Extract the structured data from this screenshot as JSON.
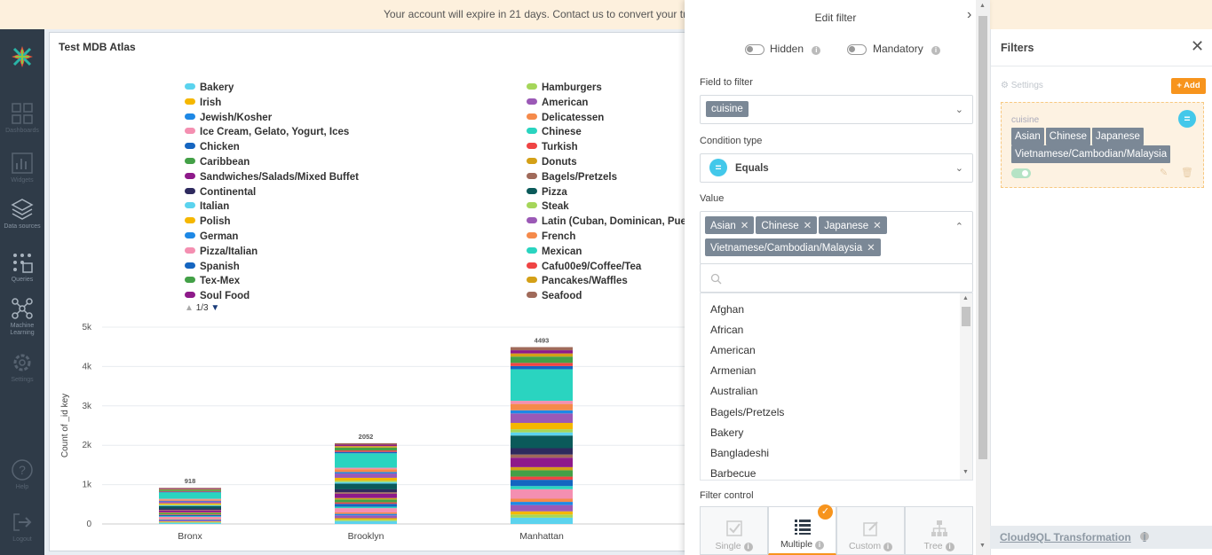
{
  "banner": {
    "text": "Your account will expire in 21 days. Contact us to convert your tri"
  },
  "nav": {
    "items": [
      {
        "label": "Dashboards",
        "icon": "dashboards-icon"
      },
      {
        "label": "Widgets",
        "icon": "widgets-icon"
      },
      {
        "label": "Data sources",
        "icon": "data-sources-icon"
      },
      {
        "label": "Queries",
        "icon": "queries-icon"
      },
      {
        "label": "Machine Learning",
        "icon": "machine-learning-icon"
      },
      {
        "label": "Settings",
        "icon": "settings-icon"
      },
      {
        "label": "Help",
        "icon": "help-icon"
      },
      {
        "label": "Logout",
        "icon": "logout-icon"
      }
    ]
  },
  "widget": {
    "title": "Test MDB Atlas"
  },
  "legend": {
    "col1": [
      {
        "label": "Bakery",
        "color": "#5bd3ee"
      },
      {
        "label": "Irish",
        "color": "#f5b700"
      },
      {
        "label": "Jewish/Kosher",
        "color": "#1e88e5"
      },
      {
        "label": "Ice Cream, Gelato, Yogurt, Ices",
        "color": "#f48fb1"
      },
      {
        "label": "Chicken",
        "color": "#1565c0"
      },
      {
        "label": "Caribbean",
        "color": "#43a047"
      },
      {
        "label": "Sandwiches/Salads/Mixed Buffet",
        "color": "#8e1a8a"
      },
      {
        "label": "Continental",
        "color": "#2e2a5e"
      },
      {
        "label": "Italian",
        "color": "#5bd3ee"
      },
      {
        "label": "Polish",
        "color": "#f5b700"
      },
      {
        "label": "German",
        "color": "#1e88e5"
      },
      {
        "label": "Pizza/Italian",
        "color": "#f48fb1"
      },
      {
        "label": "Spanish",
        "color": "#1565c0"
      },
      {
        "label": "Tex-Mex",
        "color": "#43a047"
      },
      {
        "label": "Soul Food",
        "color": "#8e1a8a"
      }
    ],
    "col2": [
      {
        "label": "Hamburgers",
        "color": "#a5d65a"
      },
      {
        "label": "American",
        "color": "#9b59b6"
      },
      {
        "label": "Delicatessen",
        "color": "#f58a4b"
      },
      {
        "label": "Chinese",
        "color": "#2ad4c0"
      },
      {
        "label": "Turkish",
        "color": "#ef4444"
      },
      {
        "label": "Donuts",
        "color": "#d4a017"
      },
      {
        "label": "Bagels/Pretzels",
        "color": "#a06a5a"
      },
      {
        "label": "Pizza",
        "color": "#0b5a5a"
      },
      {
        "label": "Steak",
        "color": "#a5d65a"
      },
      {
        "label": "Latin (Cuban, Dominican, Puer",
        "color": "#9b59b6"
      },
      {
        "label": "French",
        "color": "#f58a4b"
      },
      {
        "label": "Mexican",
        "color": "#2ad4c0"
      },
      {
        "label": "Cafu00e9/Coffee/Tea",
        "color": "#ef4444"
      },
      {
        "label": "Pancakes/Waffles",
        "color": "#d4a017"
      },
      {
        "label": "Seafood",
        "color": "#a06a5a"
      }
    ],
    "pager": "1/3"
  },
  "chart_data": {
    "type": "bar",
    "stacked": true,
    "categories": [
      "Bronx",
      "Brooklyn",
      "Manhattan"
    ],
    "values": [
      918,
      2052,
      4493
    ],
    "ylabel": "Count of _id key",
    "ylim": [
      0,
      5000
    ],
    "yticks": [
      "0",
      "1k",
      "2k",
      "3k",
      "4k",
      "5k"
    ],
    "grid": true
  },
  "edit_filter": {
    "title": "Edit filter",
    "hidden_label": "Hidden",
    "mandatory_label": "Mandatory",
    "field_label": "Field to filter",
    "field_value": "cuisine",
    "condition_label": "Condition type",
    "condition_symbol": "=",
    "condition_value": "Equals",
    "value_label": "Value",
    "selected": [
      "Asian",
      "Chinese",
      "Japanese",
      "Vietnamese/Cambodian/Malaysia"
    ],
    "options": [
      "Afghan",
      "African",
      "American",
      "Armenian",
      "Australian",
      "Bagels/Pretzels",
      "Bakery",
      "Bangladeshi",
      "Barbecue"
    ],
    "control_label": "Filter control",
    "controls": [
      {
        "label": "Single",
        "icon": "checkbox-icon"
      },
      {
        "label": "Multiple",
        "icon": "list-icon"
      },
      {
        "label": "Custom",
        "icon": "edit-icon"
      },
      {
        "label": "Tree",
        "icon": "tree-icon"
      }
    ],
    "selected_control": "Multiple"
  },
  "filters": {
    "title": "Filters",
    "settings_label": "Settings",
    "add_label": "+ Add",
    "card": {
      "field": "cuisine",
      "symbol": "=",
      "values": [
        "Asian",
        "Chinese",
        "Japanese",
        "Vietnamese/Cambodian/Malaysia"
      ]
    },
    "transformation_label": "Cloud9QL Transformation"
  }
}
